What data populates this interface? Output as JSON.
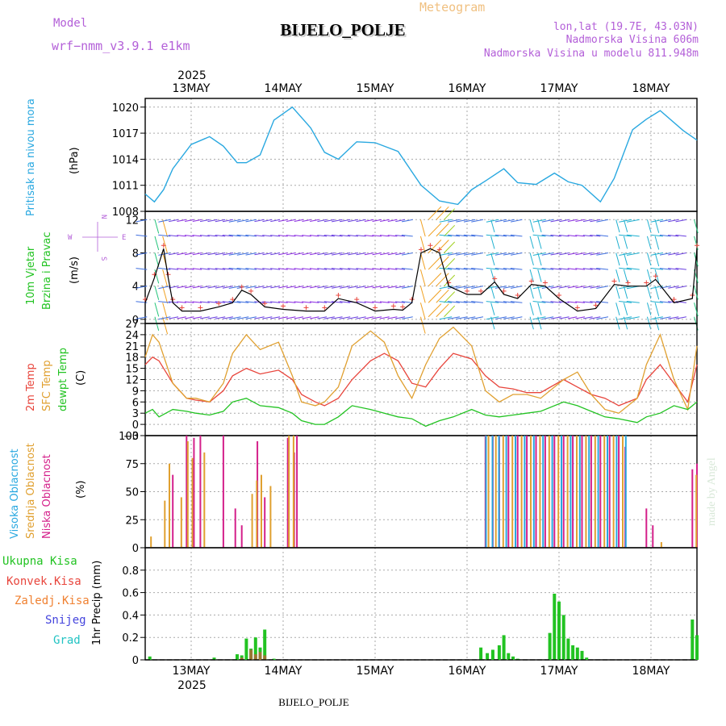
{
  "header": {
    "model_label": "Model",
    "model_name": "wrf−nmm_v3.9.1  e1km",
    "meteogram_label": "Meteogram",
    "station_title": "BIJELO_POLJE",
    "lonlat": "lon,lat (19.7E, 43.03N)",
    "altitude": "Nadmorska Visina 606m",
    "model_altitude": "Nadmorska Visina u modelu 811.948m"
  },
  "footer": {
    "station": "BIJELO_POLJE"
  },
  "watermark": "made by Angel",
  "colors": {
    "pressure": "#29a8e0",
    "t2m": "#e8453c",
    "sfc": "#e0a030",
    "dew": "#22c322",
    "cl_high": "#29a8e0",
    "cl_mid": "#e0a030",
    "cl_low": "#d4208a",
    "precip_total": "#22c322",
    "precip_conv": "#e8453c",
    "precip_snow": "#4444dd",
    "purple_text": "#b35fd8",
    "green_label": "#22c322",
    "barb_cold": "#8a2be2"
  },
  "time_axis": {
    "year": "2025",
    "days": [
      {
        "label": "13MAY",
        "t": 0.5
      },
      {
        "label": "14MAY",
        "t": 1.5
      },
      {
        "label": "15MAY",
        "t": 2.5
      },
      {
        "label": "16MAY",
        "t": 3.5
      },
      {
        "label": "17MAY",
        "t": 4.5
      },
      {
        "label": "18MAY",
        "t": 5.5
      }
    ],
    "range": [
      0,
      6
    ]
  },
  "panel_labels": {
    "pressure": {
      "name": "Pritisak na nivou mora",
      "unit": "(hPa)"
    },
    "wind": {
      "name1": "10m Vjetar",
      "name2": "Brzina i Pravac",
      "unit": "(m/s)",
      "compass": [
        "N",
        "S",
        "W",
        "E"
      ]
    },
    "temp": {
      "t2m": "2m Temp",
      "sfc": "SFC Temp",
      "dew": "dewpt Temp",
      "unit": "(C)"
    },
    "cloud": {
      "high": "Visoka Oblacnost",
      "mid": "Srednja Oblacnost",
      "low": "Niska Oblacnost",
      "unit": "(%)"
    },
    "precip": {
      "total": "Ukupna Kisa",
      "conv": "Konvek.Kisa",
      "frozen": "Zaledj.Kisa",
      "snow": "Snijeg",
      "hail": "Grad",
      "unit": "1hr Precip (mm)"
    }
  },
  "chart_data": [
    {
      "type": "line",
      "name": "pressure",
      "ylim": [
        1008,
        1021
      ],
      "yticks": [
        "1008",
        "1011",
        "1014",
        "1017",
        "1020"
      ],
      "x": [
        0,
        0.1,
        0.2,
        0.3,
        0.5,
        0.7,
        0.85,
        1.0,
        1.1,
        1.25,
        1.4,
        1.6,
        1.8,
        1.95,
        2.1,
        2.3,
        2.5,
        2.75,
        3.0,
        3.2,
        3.4,
        3.55,
        3.7,
        3.9,
        4.05,
        4.25,
        4.45,
        4.6,
        4.75,
        4.95,
        5.1,
        5.3,
        5.45,
        5.6,
        5.85,
        6.0
      ],
      "values": [
        1010,
        1009.1,
        1010.5,
        1012.9,
        1015.7,
        1016.6,
        1015.5,
        1013.6,
        1013.6,
        1014.5,
        1018.5,
        1020.0,
        1017.6,
        1014.8,
        1014.0,
        1016.0,
        1015.9,
        1014.9,
        1011.0,
        1009.2,
        1008.8,
        1010.5,
        1011.5,
        1012.9,
        1011.3,
        1011.1,
        1012.4,
        1011.4,
        1011.0,
        1009.1,
        1011.8,
        1017.4,
        1018.6,
        1019.6,
        1017.3,
        1016.2
      ]
    },
    {
      "type": "line",
      "name": "wind_speed",
      "ylim": [
        -0.5,
        13
      ],
      "yticks": [
        "0",
        "4",
        "8",
        "12"
      ],
      "x": [
        0,
        0.1,
        0.2,
        0.25,
        0.3,
        0.4,
        0.6,
        0.8,
        0.95,
        1.05,
        1.15,
        1.3,
        1.5,
        1.75,
        1.95,
        2.1,
        2.3,
        2.5,
        2.7,
        2.8,
        2.9,
        3.0,
        3.1,
        3.2,
        3.3,
        3.5,
        3.65,
        3.8,
        3.9,
        4.05,
        4.2,
        4.35,
        4.5,
        4.7,
        4.9,
        5.1,
        5.25,
        5.45,
        5.55,
        5.75,
        5.95,
        6.0
      ],
      "values": [
        2,
        5,
        8.5,
        5,
        2,
        1,
        1,
        1.5,
        2,
        3.5,
        3,
        1.5,
        1.2,
        1,
        1,
        2.5,
        2,
        1,
        1.2,
        1.1,
        2,
        8,
        8.5,
        8,
        4,
        3,
        3,
        4.5,
        3,
        2.5,
        4.2,
        4,
        2.5,
        1,
        1.3,
        4.2,
        4,
        4,
        4.8,
        2,
        2.5,
        8.5
      ]
    },
    {
      "type": "line",
      "name": "temperature",
      "ylim": [
        -3,
        27
      ],
      "yticks": [
        "−3",
        "0",
        "3",
        "6",
        "9",
        "12",
        "15",
        "18",
        "21",
        "24",
        "27"
      ],
      "x": [
        0,
        0.08,
        0.15,
        0.3,
        0.45,
        0.55,
        0.7,
        0.85,
        0.95,
        1.1,
        1.25,
        1.45,
        1.6,
        1.7,
        1.85,
        1.95,
        2.1,
        2.25,
        2.45,
        2.6,
        2.75,
        2.9,
        3.05,
        3.2,
        3.35,
        3.55,
        3.7,
        3.85,
        4.0,
        4.15,
        4.3,
        4.55,
        4.7,
        4.85,
        5.0,
        5.15,
        5.35,
        5.45,
        5.6,
        5.75,
        5.9,
        6.0
      ],
      "series": [
        {
          "name": "2m Temp",
          "values": [
            16,
            18,
            17,
            11,
            7,
            6.5,
            6,
            9,
            13,
            15,
            13.5,
            14.5,
            12,
            8,
            6,
            5,
            7,
            12,
            17,
            19,
            17,
            11,
            10,
            15,
            19,
            17.5,
            13,
            10,
            9.5,
            8.5,
            8.5,
            12,
            10,
            8,
            7,
            5,
            7,
            12,
            16,
            11,
            6,
            16
          ]
        },
        {
          "name": "SFC Temp",
          "values": [
            18,
            24,
            22,
            11,
            7,
            7,
            6,
            11,
            19,
            24,
            20,
            22,
            13,
            6,
            5,
            6,
            10,
            21,
            25,
            22,
            13,
            7,
            16,
            23,
            26,
            21,
            9,
            6,
            8,
            8,
            7,
            12,
            14,
            8,
            4,
            3,
            7,
            16,
            24,
            12,
            4,
            21
          ]
        },
        {
          "name": "dewpt Temp",
          "values": [
            3,
            4,
            2,
            4,
            3.5,
            3,
            2.5,
            3.5,
            6,
            7,
            5,
            4.5,
            3,
            1,
            0,
            0,
            2,
            5,
            4,
            3,
            2,
            1.5,
            -0.5,
            1,
            2,
            4,
            2.5,
            2,
            2.5,
            3,
            3.5,
            6,
            5,
            3.5,
            2,
            1.5,
            0.5,
            2,
            3,
            5,
            4,
            6
          ]
        }
      ]
    },
    {
      "type": "bar",
      "name": "cloud_cover",
      "ylim": [
        0,
        100
      ],
      "yticks": [
        "0",
        "25",
        "50",
        "75",
        "100"
      ],
      "series": [
        {
          "name": "Niska Oblacnost",
          "x": [
            0.3,
            0.45,
            0.53,
            0.6,
            0.85,
            0.98,
            1.05,
            1.22,
            1.3,
            1.55,
            1.62,
            1.65,
            3.7,
            3.78,
            3.85,
            3.95,
            4.05,
            4.15,
            4.25,
            4.35,
            4.45,
            4.55,
            4.65,
            4.75,
            4.85,
            4.95,
            5.05,
            5.15,
            5.22,
            5.45,
            5.52,
            5.95,
            6.0
          ],
          "values": [
            65,
            100,
            98,
            100,
            100,
            35,
            20,
            95,
            45,
            98,
            85,
            100,
            100,
            100,
            100,
            100,
            100,
            100,
            100,
            100,
            100,
            100,
            100,
            100,
            100,
            100,
            100,
            100,
            90,
            35,
            20,
            70,
            75
          ]
        },
        {
          "name": "Srednja Oblacnost",
          "x": [
            0.05,
            0.2,
            0.25,
            0.38,
            0.45,
            0.5,
            0.63,
            1.15,
            1.2,
            1.25,
            1.35,
            1.55,
            1.6,
            3.72,
            3.8,
            3.88,
            3.98,
            4.08,
            4.18,
            4.28,
            4.38,
            4.48,
            4.58,
            4.68,
            4.78,
            4.88,
            4.98,
            5.08,
            5.18,
            5.6,
            5.98
          ],
          "values": [
            10,
            42,
            75,
            45,
            95,
            80,
            85,
            48,
            60,
            65,
            55,
            100,
            100,
            100,
            100,
            100,
            100,
            100,
            100,
            100,
            100,
            100,
            100,
            100,
            100,
            100,
            100,
            100,
            100,
            5,
            65
          ]
        },
        {
          "name": "Visoka Oblacnost",
          "x": [
            3.68,
            3.75,
            3.82,
            3.9,
            4.0,
            4.1,
            4.2,
            4.3,
            4.4,
            4.5,
            4.6,
            4.7,
            4.8,
            4.9,
            5.0,
            5.1,
            5.2
          ],
          "values": [
            100,
            100,
            100,
            100,
            100,
            100,
            100,
            100,
            100,
            100,
            100,
            100,
            100,
            100,
            100,
            100,
            100
          ]
        }
      ]
    },
    {
      "type": "bar",
      "name": "precipitation",
      "ylim": [
        0,
        1.0
      ],
      "yticks": [
        "0",
        "0.2",
        "0.4",
        "0.6",
        "0.8"
      ],
      "series": [
        {
          "name": "Ukupna Kisa",
          "x": [
            0.05,
            0.75,
            1.0,
            1.05,
            1.1,
            1.15,
            1.2,
            1.25,
            1.3,
            1.4,
            3.65,
            3.72,
            3.78,
            3.85,
            3.9,
            3.95,
            4.0,
            4.05,
            4.4,
            4.45,
            4.5,
            4.55,
            4.6,
            4.65,
            4.7,
            4.75,
            4.8,
            5.95,
            6.0
          ],
          "values": [
            0.03,
            0.02,
            0.05,
            0.04,
            0.19,
            0.1,
            0.2,
            0.11,
            0.27,
            0.01,
            0.11,
            0.06,
            0.09,
            0.13,
            0.22,
            0.06,
            0.03,
            0.01,
            0.24,
            0.59,
            0.52,
            0.4,
            0.19,
            0.13,
            0.11,
            0.08,
            0.02,
            0.36,
            0.22
          ]
        },
        {
          "name": "Konvek.Kisa",
          "x": [
            1.05,
            1.15,
            1.2,
            1.25,
            1.3
          ],
          "values": [
            0.02,
            0.09,
            0.05,
            0.07,
            0.04
          ]
        }
      ]
    }
  ]
}
